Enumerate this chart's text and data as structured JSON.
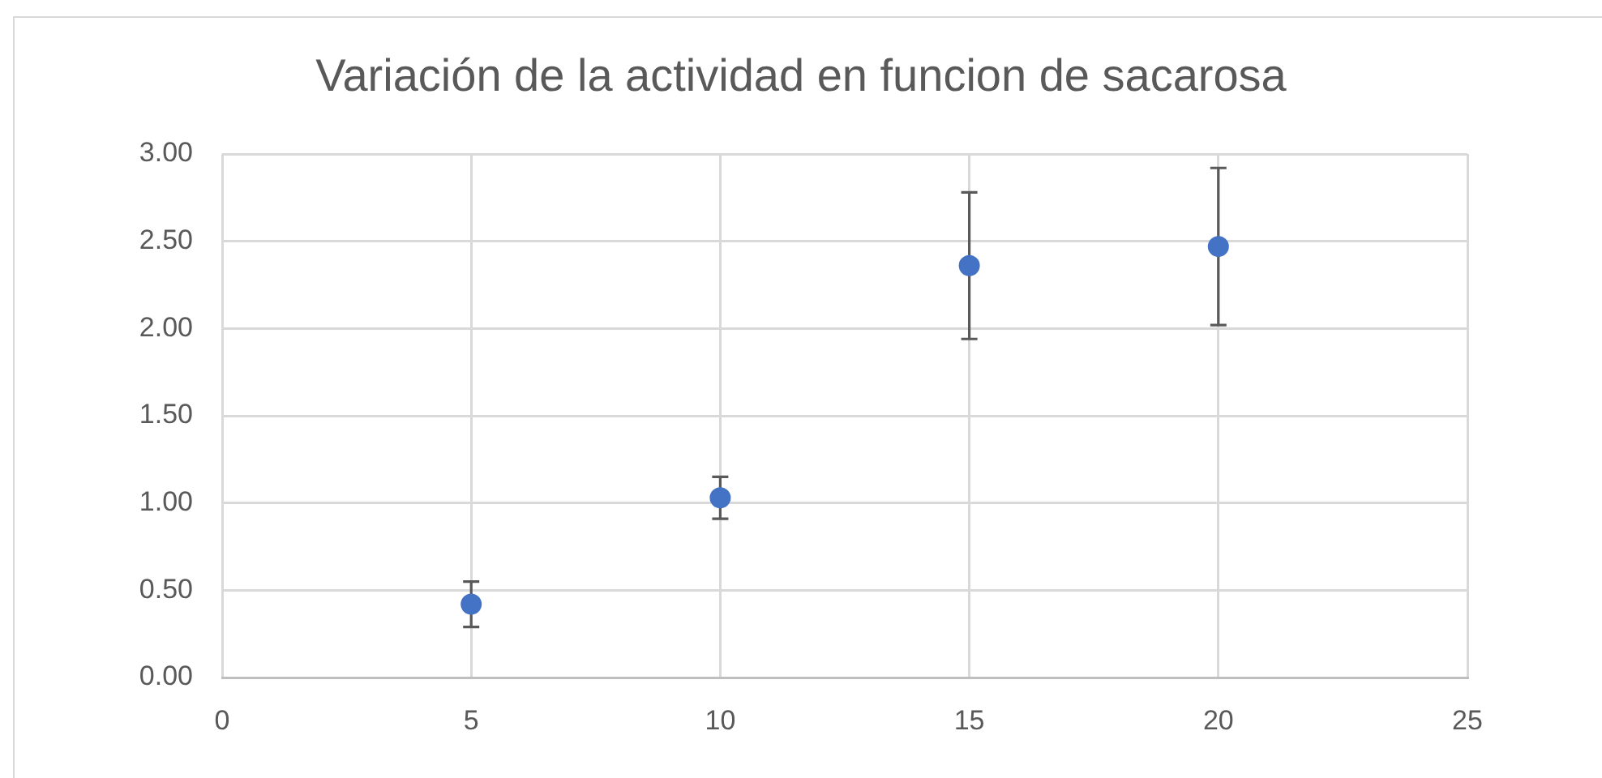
{
  "chart_data": {
    "type": "scatter",
    "title": "Variación de la actividad en funcion de sacarosa",
    "x": [
      5,
      10,
      15,
      20
    ],
    "values": [
      0.42,
      1.03,
      2.36,
      2.47
    ],
    "errors": [
      0.13,
      0.12,
      0.42,
      0.45
    ],
    "color": "#4472c4",
    "xlim": [
      0,
      25
    ],
    "xticks": [
      0,
      5,
      10,
      15,
      20,
      25
    ],
    "ylim": [
      0,
      3
    ],
    "yticks": [
      {
        "value": 0,
        "label": "0.00"
      },
      {
        "value": 0.5,
        "label": "0.50"
      },
      {
        "value": 1,
        "label": "1.00"
      },
      {
        "value": 1.5,
        "label": "1.50"
      },
      {
        "value": 2,
        "label": "2.00"
      },
      {
        "value": 2.5,
        "label": "2.50"
      },
      {
        "value": 3,
        "label": "3.00"
      }
    ],
    "grid": true,
    "marker": "circle"
  }
}
